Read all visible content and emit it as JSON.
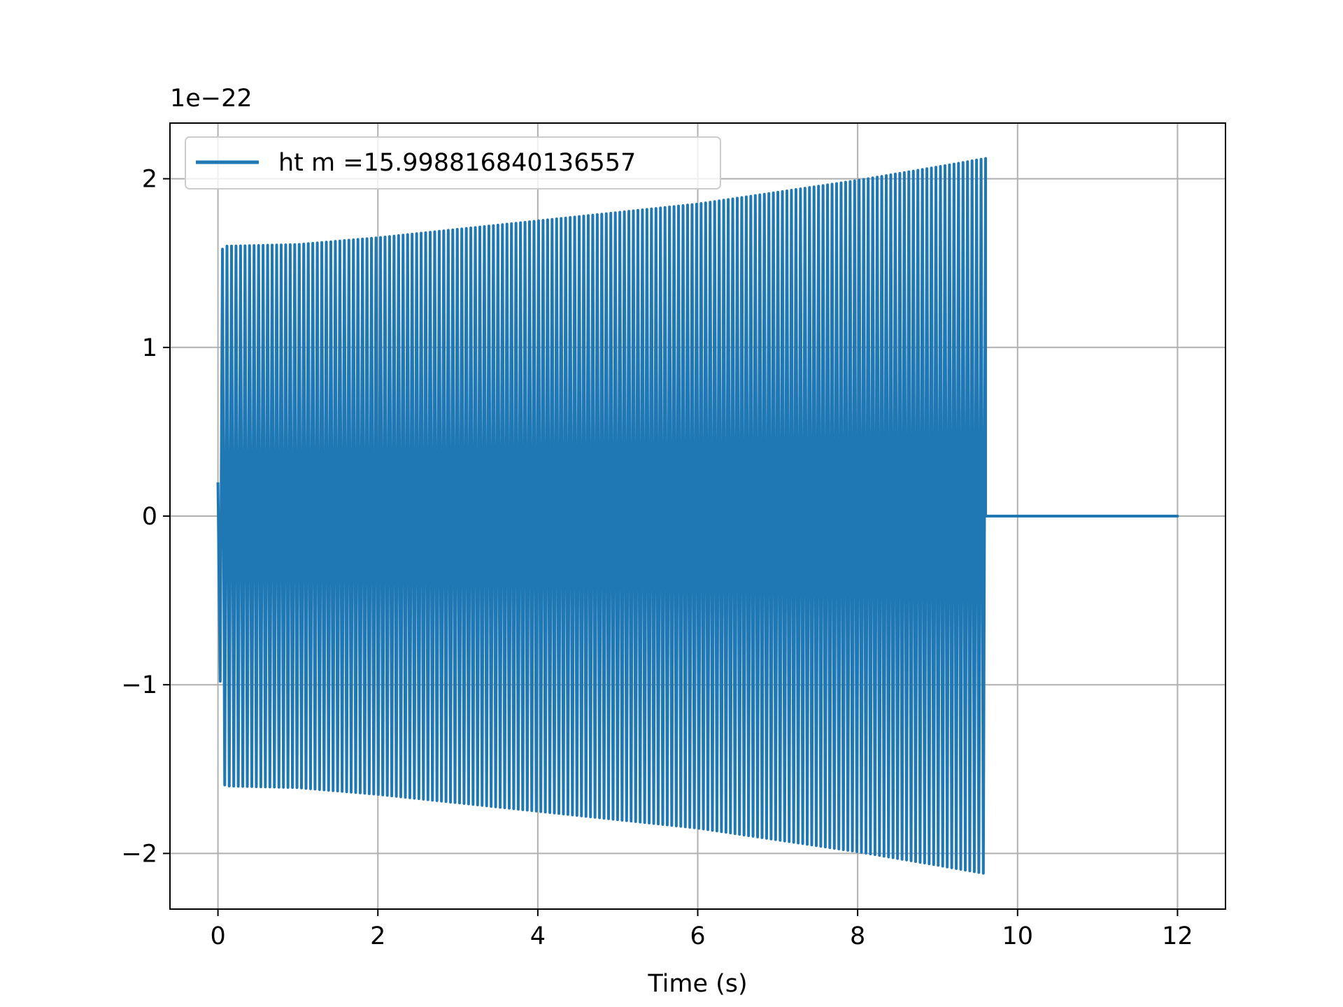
{
  "chart_data": {
    "type": "line",
    "title": "",
    "xlabel": "Time (s)",
    "ylabel": "",
    "y_offset_text": "1e−22",
    "xlim": [
      -0.6,
      12.6
    ],
    "ylim": [
      -2.33,
      2.33
    ],
    "grid": true,
    "legend_position": "upper-left",
    "x_ticks": [
      0,
      2,
      4,
      6,
      8,
      10,
      12
    ],
    "x_tick_labels": [
      "0",
      "2",
      "4",
      "6",
      "8",
      "10",
      "12"
    ],
    "y_ticks": [
      -2,
      -1,
      0,
      1,
      2
    ],
    "y_tick_labels": [
      "−2",
      "−1",
      "0",
      "1",
      "2"
    ],
    "series": [
      {
        "name": "ht m =15.998816840136557",
        "color": "#1f77b4",
        "envelope": {
          "t": [
            0.0,
            0.05,
            0.1,
            1.0,
            2.0,
            3.0,
            4.0,
            5.0,
            6.0,
            7.0,
            8.0,
            9.0,
            9.6
          ],
          "amplitude": [
            0.2,
            1.58,
            1.6,
            1.61,
            1.65,
            1.7,
            1.75,
            1.8,
            1.85,
            1.92,
            1.99,
            2.07,
            2.12
          ]
        },
        "cycles_visible": 170,
        "signal_end": 9.6,
        "flat_segment": [
          [
            9.6,
            0
          ],
          [
            12.0,
            0
          ]
        ]
      }
    ]
  }
}
